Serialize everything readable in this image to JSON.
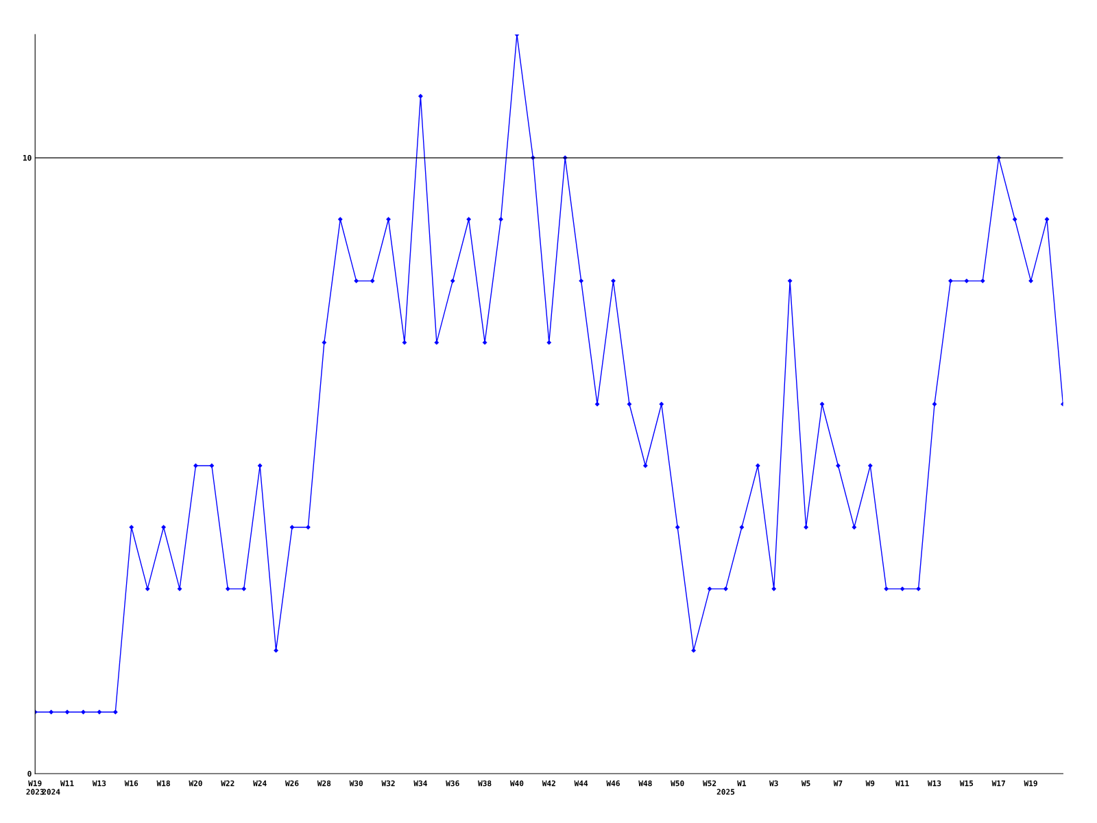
{
  "chart_data": {
    "type": "line",
    "categories": [
      "W19\n2023",
      "\n2024",
      "W11",
      null,
      "W13",
      null,
      "W16",
      null,
      "W18",
      null,
      "W20",
      null,
      "W22",
      null,
      "W24",
      null,
      "W26",
      null,
      "W28",
      null,
      "W30",
      null,
      "W32",
      null,
      "W34",
      null,
      "W36",
      null,
      "W38",
      null,
      "W40",
      null,
      "W42",
      null,
      "W44",
      null,
      "W46",
      null,
      "W48",
      null,
      "W50",
      null,
      "W52",
      "\n2025",
      "W1",
      null,
      "W3",
      null,
      "W5",
      null,
      "W7",
      null,
      "W9",
      null,
      "W11",
      null,
      "W13",
      null,
      "W15",
      null,
      "W17",
      null,
      "W19",
      null,
      null
    ],
    "series": [
      {
        "color": "#0000ff",
        "values": [
          1,
          1,
          1,
          1,
          1,
          1,
          4,
          3,
          4,
          3,
          5,
          5,
          3,
          3,
          5,
          2,
          4,
          4,
          7,
          9,
          8,
          8,
          9,
          7,
          11,
          7,
          8,
          9,
          7,
          9,
          12,
          10,
          7,
          10,
          8,
          6,
          8,
          6,
          5,
          6,
          4,
          2,
          3,
          3,
          4,
          5,
          3,
          8,
          4,
          6,
          5,
          4,
          5,
          3,
          3,
          3,
          6,
          8,
          8,
          8,
          10,
          9,
          8,
          9,
          6
        ]
      }
    ],
    "ylim": [
      0,
      12
    ],
    "yticks": [
      0,
      10
    ],
    "marker": "diamond",
    "line_style": "solid",
    "grid": false,
    "legend": false,
    "ref_lines": [
      {
        "axis": "y",
        "value": 10,
        "color": "#000000",
        "line_style": "solid"
      }
    ]
  }
}
